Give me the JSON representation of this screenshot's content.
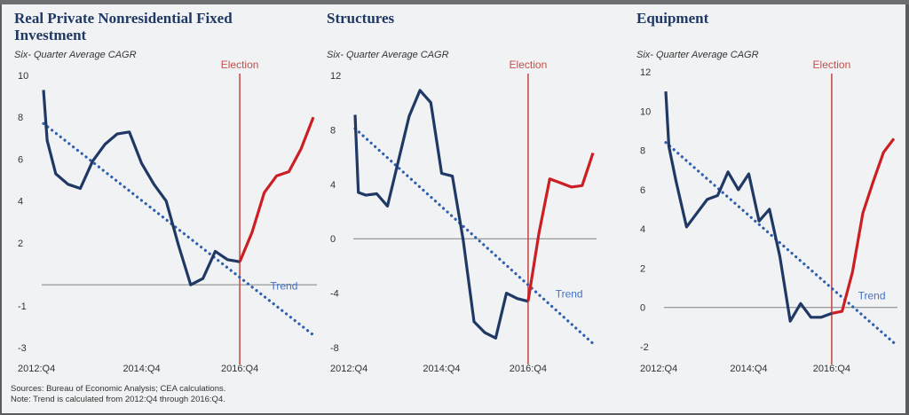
{
  "sources": "Sources: Bureau of Economic Analysis; CEA calculations.",
  "note": "Note: Trend is calculated from 2012:Q4 through 2016:Q4.",
  "colors": {
    "pre": "#1f3864",
    "post": "#cc1f24",
    "trend": "#2e5fb0",
    "election": "#c0504d",
    "zero": "#808080"
  },
  "chart_data": [
    {
      "type": "line",
      "title": "Real Private Nonresidential Fixed Investment",
      "subtitle": "Six- Quarter Average CAGR",
      "ylim": [
        -3,
        10
      ],
      "yticks": [
        10,
        8,
        6,
        4,
        2,
        -1,
        -3
      ],
      "xtick_labels": [
        {
          "q": 0,
          "label": "2012:Q4"
        },
        {
          "q": 8,
          "label": "2014:Q4"
        },
        {
          "q": 16,
          "label": "2016:Q4"
        }
      ],
      "election_q": 16,
      "election_label": "Election",
      "trend_label": "Trend",
      "pre": [
        [
          0,
          9.3
        ],
        [
          0.3,
          6.9
        ],
        [
          1,
          5.3
        ],
        [
          2,
          4.8
        ],
        [
          3,
          4.6
        ],
        [
          4,
          5.9
        ],
        [
          5,
          6.7
        ],
        [
          6,
          7.2
        ],
        [
          7,
          7.3
        ],
        [
          8,
          5.8
        ],
        [
          9,
          4.8
        ],
        [
          10,
          4.0
        ],
        [
          11,
          1.9
        ],
        [
          12,
          0.0
        ],
        [
          13,
          0.3
        ],
        [
          14,
          1.6
        ],
        [
          15,
          1.2
        ],
        [
          16,
          1.1
        ]
      ],
      "post": [
        [
          16,
          1.1
        ],
        [
          17,
          2.5
        ],
        [
          18,
          4.4
        ],
        [
          19,
          5.2
        ],
        [
          20,
          5.4
        ],
        [
          21,
          6.5
        ],
        [
          22,
          8.0
        ]
      ],
      "trend": [
        [
          0,
          7.7
        ],
        [
          22,
          -2.4
        ]
      ]
    },
    {
      "type": "line",
      "title": "Structures",
      "subtitle": "Six- Quarter Average CAGR",
      "ylim": [
        -8,
        12
      ],
      "yticks": [
        12,
        8,
        4,
        0,
        -4,
        -8
      ],
      "xtick_labels": [
        {
          "q": 0,
          "label": "2012:Q4"
        },
        {
          "q": 8,
          "label": "2014:Q4"
        },
        {
          "q": 16,
          "label": "2016:Q4"
        }
      ],
      "election_q": 16,
      "election_label": "Election",
      "trend_label": "Trend",
      "pre": [
        [
          0,
          9.1
        ],
        [
          0.3,
          3.4
        ],
        [
          1,
          3.2
        ],
        [
          2,
          3.3
        ],
        [
          3,
          2.4
        ],
        [
          4,
          5.7
        ],
        [
          5,
          9.0
        ],
        [
          6,
          10.9
        ],
        [
          7,
          10.0
        ],
        [
          8,
          4.8
        ],
        [
          9,
          4.6
        ],
        [
          10,
          -0.1
        ],
        [
          11,
          -6.1
        ],
        [
          12,
          -6.9
        ],
        [
          13,
          -7.3
        ],
        [
          14,
          -4.0
        ],
        [
          15,
          -4.4
        ],
        [
          16,
          -4.6
        ]
      ],
      "post": [
        [
          16,
          -4.6
        ],
        [
          17,
          0.4
        ],
        [
          18,
          4.4
        ],
        [
          19,
          4.1
        ],
        [
          20,
          3.8
        ],
        [
          21,
          3.9
        ],
        [
          22,
          6.3
        ]
      ],
      "trend": [
        [
          0,
          8.1
        ],
        [
          22,
          -7.7
        ]
      ]
    },
    {
      "type": "line",
      "title": "Equipment",
      "subtitle": "Six- Quarter Average CAGR",
      "ylim": [
        -2,
        12
      ],
      "yticks": [
        12,
        10,
        8,
        6,
        4,
        2,
        0,
        -2
      ],
      "xtick_labels": [
        {
          "q": 0,
          "label": "2012:Q4"
        },
        {
          "q": 8,
          "label": "2014:Q4"
        },
        {
          "q": 16,
          "label": "2016:Q4"
        }
      ],
      "election_q": 16,
      "election_label": "Election",
      "trend_label": "Trend",
      "pre": [
        [
          0,
          11.0
        ],
        [
          0.3,
          8.2
        ],
        [
          1,
          6.4
        ],
        [
          2,
          4.1
        ],
        [
          3,
          4.8
        ],
        [
          4,
          5.5
        ],
        [
          5,
          5.7
        ],
        [
          6,
          6.9
        ],
        [
          7,
          6.0
        ],
        [
          8,
          6.8
        ],
        [
          9,
          4.4
        ],
        [
          10,
          5.0
        ],
        [
          11,
          2.6
        ],
        [
          12,
          -0.7
        ],
        [
          13,
          0.2
        ],
        [
          14,
          -0.5
        ],
        [
          15,
          -0.5
        ],
        [
          16,
          -0.3
        ]
      ],
      "post": [
        [
          16,
          -0.3
        ],
        [
          17,
          -0.2
        ],
        [
          18,
          1.8
        ],
        [
          19,
          4.8
        ],
        [
          20,
          6.4
        ],
        [
          21,
          7.9
        ],
        [
          22,
          8.6
        ]
      ],
      "trend": [
        [
          0,
          8.4
        ],
        [
          22,
          -1.8
        ]
      ]
    }
  ]
}
